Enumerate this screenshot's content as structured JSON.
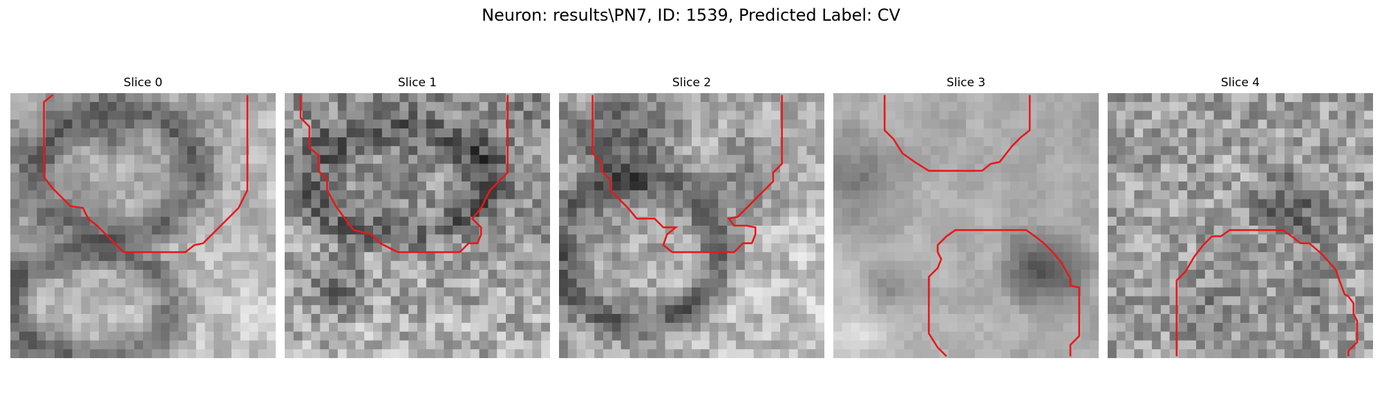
{
  "figure": {
    "title": "Neuron: results\\PN7, ID: 1539, Predicted Label: CV",
    "contour_color": "#e8181a"
  },
  "slices": [
    {
      "title": "Slice 0"
    },
    {
      "title": "Slice 1"
    },
    {
      "title": "Slice 2"
    },
    {
      "title": "Slice 3"
    },
    {
      "title": "Slice 4"
    }
  ]
}
